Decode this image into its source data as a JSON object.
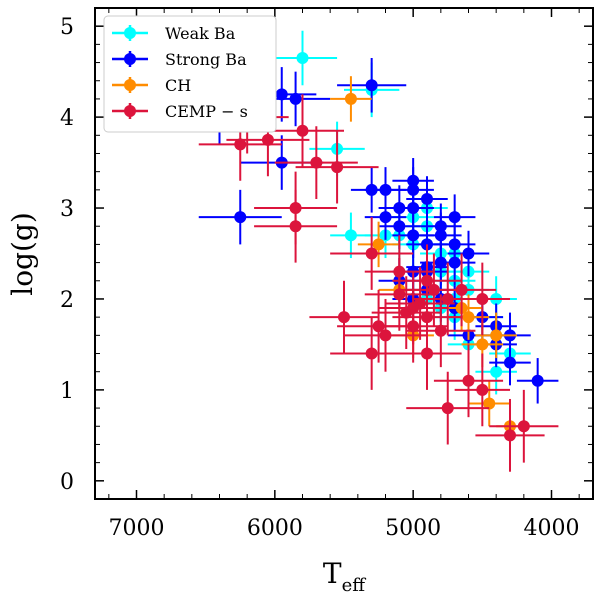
{
  "chart_data": {
    "type": "scatter",
    "xlabel": "T",
    "xlabel_sub": "eff",
    "ylabel": "log(g)",
    "xlim": [
      7300,
      3700
    ],
    "ylim": [
      5.2,
      -0.2
    ],
    "x_ticks": [
      7000,
      6000,
      5000,
      4000
    ],
    "x_tick_labels": [
      "7000",
      "6000",
      "5000",
      "4000"
    ],
    "y_ticks": [
      0,
      1,
      2,
      3,
      4,
      5
    ],
    "y_tick_labels": [
      "0",
      "1",
      "2",
      "3",
      "4",
      "5"
    ],
    "grid": false,
    "legend_position": "upper-left",
    "series": [
      {
        "name": "Weak Ba",
        "color": "#00ffff",
        "points": [
          [
            4400,
            1.2,
            150,
            0.25
          ],
          [
            4300,
            1.4,
            150,
            0.25
          ],
          [
            4400,
            1.6,
            150,
            0.25
          ],
          [
            4500,
            1.8,
            150,
            0.25
          ],
          [
            4600,
            1.5,
            150,
            0.25
          ],
          [
            4700,
            1.8,
            150,
            0.25
          ],
          [
            4800,
            1.9,
            150,
            0.25
          ],
          [
            4900,
            2.0,
            150,
            0.25
          ],
          [
            4600,
            2.1,
            150,
            0.25
          ],
          [
            4400,
            2.0,
            150,
            0.25
          ],
          [
            4700,
            2.2,
            150,
            0.25
          ],
          [
            4800,
            2.3,
            150,
            0.25
          ],
          [
            4600,
            2.3,
            150,
            0.25
          ],
          [
            4700,
            2.5,
            150,
            0.25
          ],
          [
            4900,
            2.6,
            150,
            0.25
          ],
          [
            5100,
            2.7,
            150,
            0.25
          ],
          [
            5000,
            2.6,
            150,
            0.25
          ],
          [
            4800,
            2.5,
            150,
            0.25
          ],
          [
            4900,
            2.8,
            150,
            0.25
          ],
          [
            5000,
            2.9,
            150,
            0.25
          ],
          [
            4900,
            3.0,
            150,
            0.25
          ],
          [
            5200,
            2.7,
            150,
            0.25
          ],
          [
            5450,
            2.7,
            150,
            0.25
          ],
          [
            5550,
            3.65,
            200,
            0.3
          ],
          [
            5800,
            4.65,
            250,
            0.3
          ],
          [
            5300,
            4.3,
            200,
            0.3
          ],
          [
            4700,
            2.0,
            150,
            0.25
          ]
        ]
      },
      {
        "name": "Strong Ba",
        "color": "#0000ff",
        "points": [
          [
            4100,
            1.1,
            150,
            0.25
          ],
          [
            4300,
            1.3,
            150,
            0.25
          ],
          [
            4400,
            1.5,
            150,
            0.25
          ],
          [
            4300,
            1.6,
            150,
            0.25
          ],
          [
            4600,
            1.6,
            150,
            0.25
          ],
          [
            4500,
            1.8,
            150,
            0.25
          ],
          [
            4700,
            1.9,
            150,
            0.25
          ],
          [
            4800,
            2.0,
            150,
            0.25
          ],
          [
            4900,
            2.1,
            150,
            0.25
          ],
          [
            5000,
            2.0,
            150,
            0.25
          ],
          [
            5100,
            2.2,
            150,
            0.25
          ],
          [
            5000,
            2.3,
            150,
            0.25
          ],
          [
            4900,
            2.35,
            150,
            0.25
          ],
          [
            4800,
            2.4,
            150,
            0.25
          ],
          [
            4700,
            2.4,
            150,
            0.25
          ],
          [
            4600,
            2.5,
            150,
            0.25
          ],
          [
            4700,
            2.6,
            150,
            0.25
          ],
          [
            4800,
            2.7,
            150,
            0.25
          ],
          [
            4900,
            2.6,
            150,
            0.25
          ],
          [
            5000,
            2.7,
            150,
            0.25
          ],
          [
            5100,
            2.8,
            150,
            0.25
          ],
          [
            5200,
            2.9,
            150,
            0.25
          ],
          [
            5000,
            3.0,
            150,
            0.25
          ],
          [
            5100,
            3.0,
            150,
            0.25
          ],
          [
            4900,
            3.1,
            150,
            0.25
          ],
          [
            5000,
            3.2,
            150,
            0.25
          ],
          [
            5200,
            3.2,
            150,
            0.25
          ],
          [
            5300,
            3.2,
            150,
            0.25
          ],
          [
            4800,
            2.8,
            150,
            0.25
          ],
          [
            4700,
            2.9,
            150,
            0.25
          ],
          [
            4900,
            2.3,
            150,
            0.25
          ],
          [
            5000,
            3.3,
            150,
            0.25
          ],
          [
            6250,
            2.9,
            300,
            0.3
          ],
          [
            5950,
            3.5,
            300,
            0.3
          ],
          [
            6400,
            4.0,
            300,
            0.3
          ],
          [
            5850,
            4.2,
            250,
            0.3
          ],
          [
            5950,
            4.25,
            250,
            0.3
          ],
          [
            5300,
            4.35,
            250,
            0.3
          ],
          [
            4400,
            1.7,
            150,
            0.25
          ]
        ]
      },
      {
        "name": "CH",
        "color": "#ff8c00",
        "points": [
          [
            4300,
            0.6,
            100,
            0.2
          ],
          [
            4450,
            0.85,
            150,
            0.25
          ],
          [
            4500,
            1.5,
            150,
            0.25
          ],
          [
            4400,
            1.6,
            150,
            0.25
          ],
          [
            4600,
            1.8,
            150,
            0.25
          ],
          [
            4650,
            1.9,
            150,
            0.25
          ],
          [
            5000,
            1.6,
            150,
            0.25
          ],
          [
            5100,
            2.1,
            150,
            0.25
          ],
          [
            5250,
            2.6,
            150,
            0.25
          ],
          [
            5450,
            4.2,
            150,
            0.25
          ]
        ]
      },
      {
        "name": "CEMP − s",
        "color": "#dc143c",
        "points": [
          [
            4200,
            0.6,
            250,
            0.4
          ],
          [
            4300,
            0.5,
            250,
            0.4
          ],
          [
            4500,
            1.0,
            200,
            0.4
          ],
          [
            4600,
            1.1,
            250,
            0.4
          ],
          [
            4750,
            0.8,
            300,
            0.4
          ],
          [
            4900,
            1.4,
            250,
            0.4
          ],
          [
            5000,
            1.7,
            250,
            0.4
          ],
          [
            4900,
            1.8,
            250,
            0.4
          ],
          [
            4800,
            1.65,
            250,
            0.4
          ],
          [
            5050,
            1.85,
            250,
            0.4
          ],
          [
            4950,
            1.95,
            250,
            0.4
          ],
          [
            4850,
            2.1,
            250,
            0.4
          ],
          [
            4750,
            2.0,
            250,
            0.4
          ],
          [
            4900,
            2.2,
            250,
            0.4
          ],
          [
            5100,
            2.3,
            250,
            0.4
          ],
          [
            5250,
            1.7,
            300,
            0.4
          ],
          [
            5300,
            1.4,
            300,
            0.4
          ],
          [
            5200,
            1.6,
            300,
            0.4
          ],
          [
            5500,
            1.8,
            250,
            0.4
          ],
          [
            5300,
            2.5,
            300,
            0.4
          ],
          [
            5000,
            1.9,
            250,
            0.4
          ],
          [
            5100,
            2.05,
            250,
            0.4
          ],
          [
            4500,
            2.0,
            200,
            0.4
          ],
          [
            5850,
            2.8,
            300,
            0.4
          ],
          [
            5850,
            3.0,
            300,
            0.4
          ],
          [
            5550,
            3.45,
            300,
            0.4
          ],
          [
            5700,
            3.5,
            300,
            0.4
          ],
          [
            6050,
            3.75,
            300,
            0.4
          ],
          [
            6250,
            3.7,
            300,
            0.4
          ],
          [
            6200,
            4.0,
            300,
            0.4
          ],
          [
            5800,
            3.85,
            300,
            0.4
          ],
          [
            6600,
            4.3,
            300,
            0.4
          ],
          [
            7100,
            4.27,
            0,
            0
          ],
          [
            4650,
            2.1,
            250,
            0.4
          ]
        ]
      }
    ]
  }
}
